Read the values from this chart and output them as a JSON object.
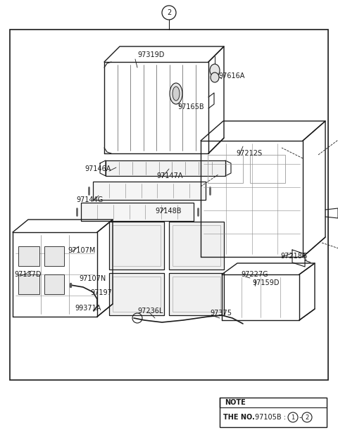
{
  "bg_color": "#ffffff",
  "line_color": "#1a1a1a",
  "text_color": "#1a1a1a",
  "fig_width": 4.8,
  "fig_height": 6.21,
  "dpi": 100,
  "note_title": "NOTE",
  "note_body_bold": "THE NO.",
  "note_body": " 97105B : ",
  "note_circ1": "1",
  "note_dash": "-",
  "note_circ2": "2",
  "circle_top_label": "2",
  "parts_labels": [
    [
      "97319D",
      195,
      78
    ],
    [
      "97165B",
      255,
      148
    ],
    [
      "97616A",
      310,
      108
    ],
    [
      "97146A",
      153,
      238
    ],
    [
      "97147A",
      225,
      248
    ],
    [
      "97212S",
      335,
      216
    ],
    [
      "97144G",
      130,
      282
    ],
    [
      "97148B",
      225,
      298
    ],
    [
      "97107M",
      100,
      355
    ],
    [
      "97107N",
      115,
      395
    ],
    [
      "97197",
      130,
      415
    ],
    [
      "99371A",
      110,
      438
    ],
    [
      "97137D",
      28,
      388
    ],
    [
      "97236L",
      210,
      440
    ],
    [
      "97375",
      300,
      445
    ],
    [
      "97218G",
      398,
      362
    ],
    [
      "97227G",
      345,
      390
    ],
    [
      "97159D",
      360,
      402
    ]
  ]
}
